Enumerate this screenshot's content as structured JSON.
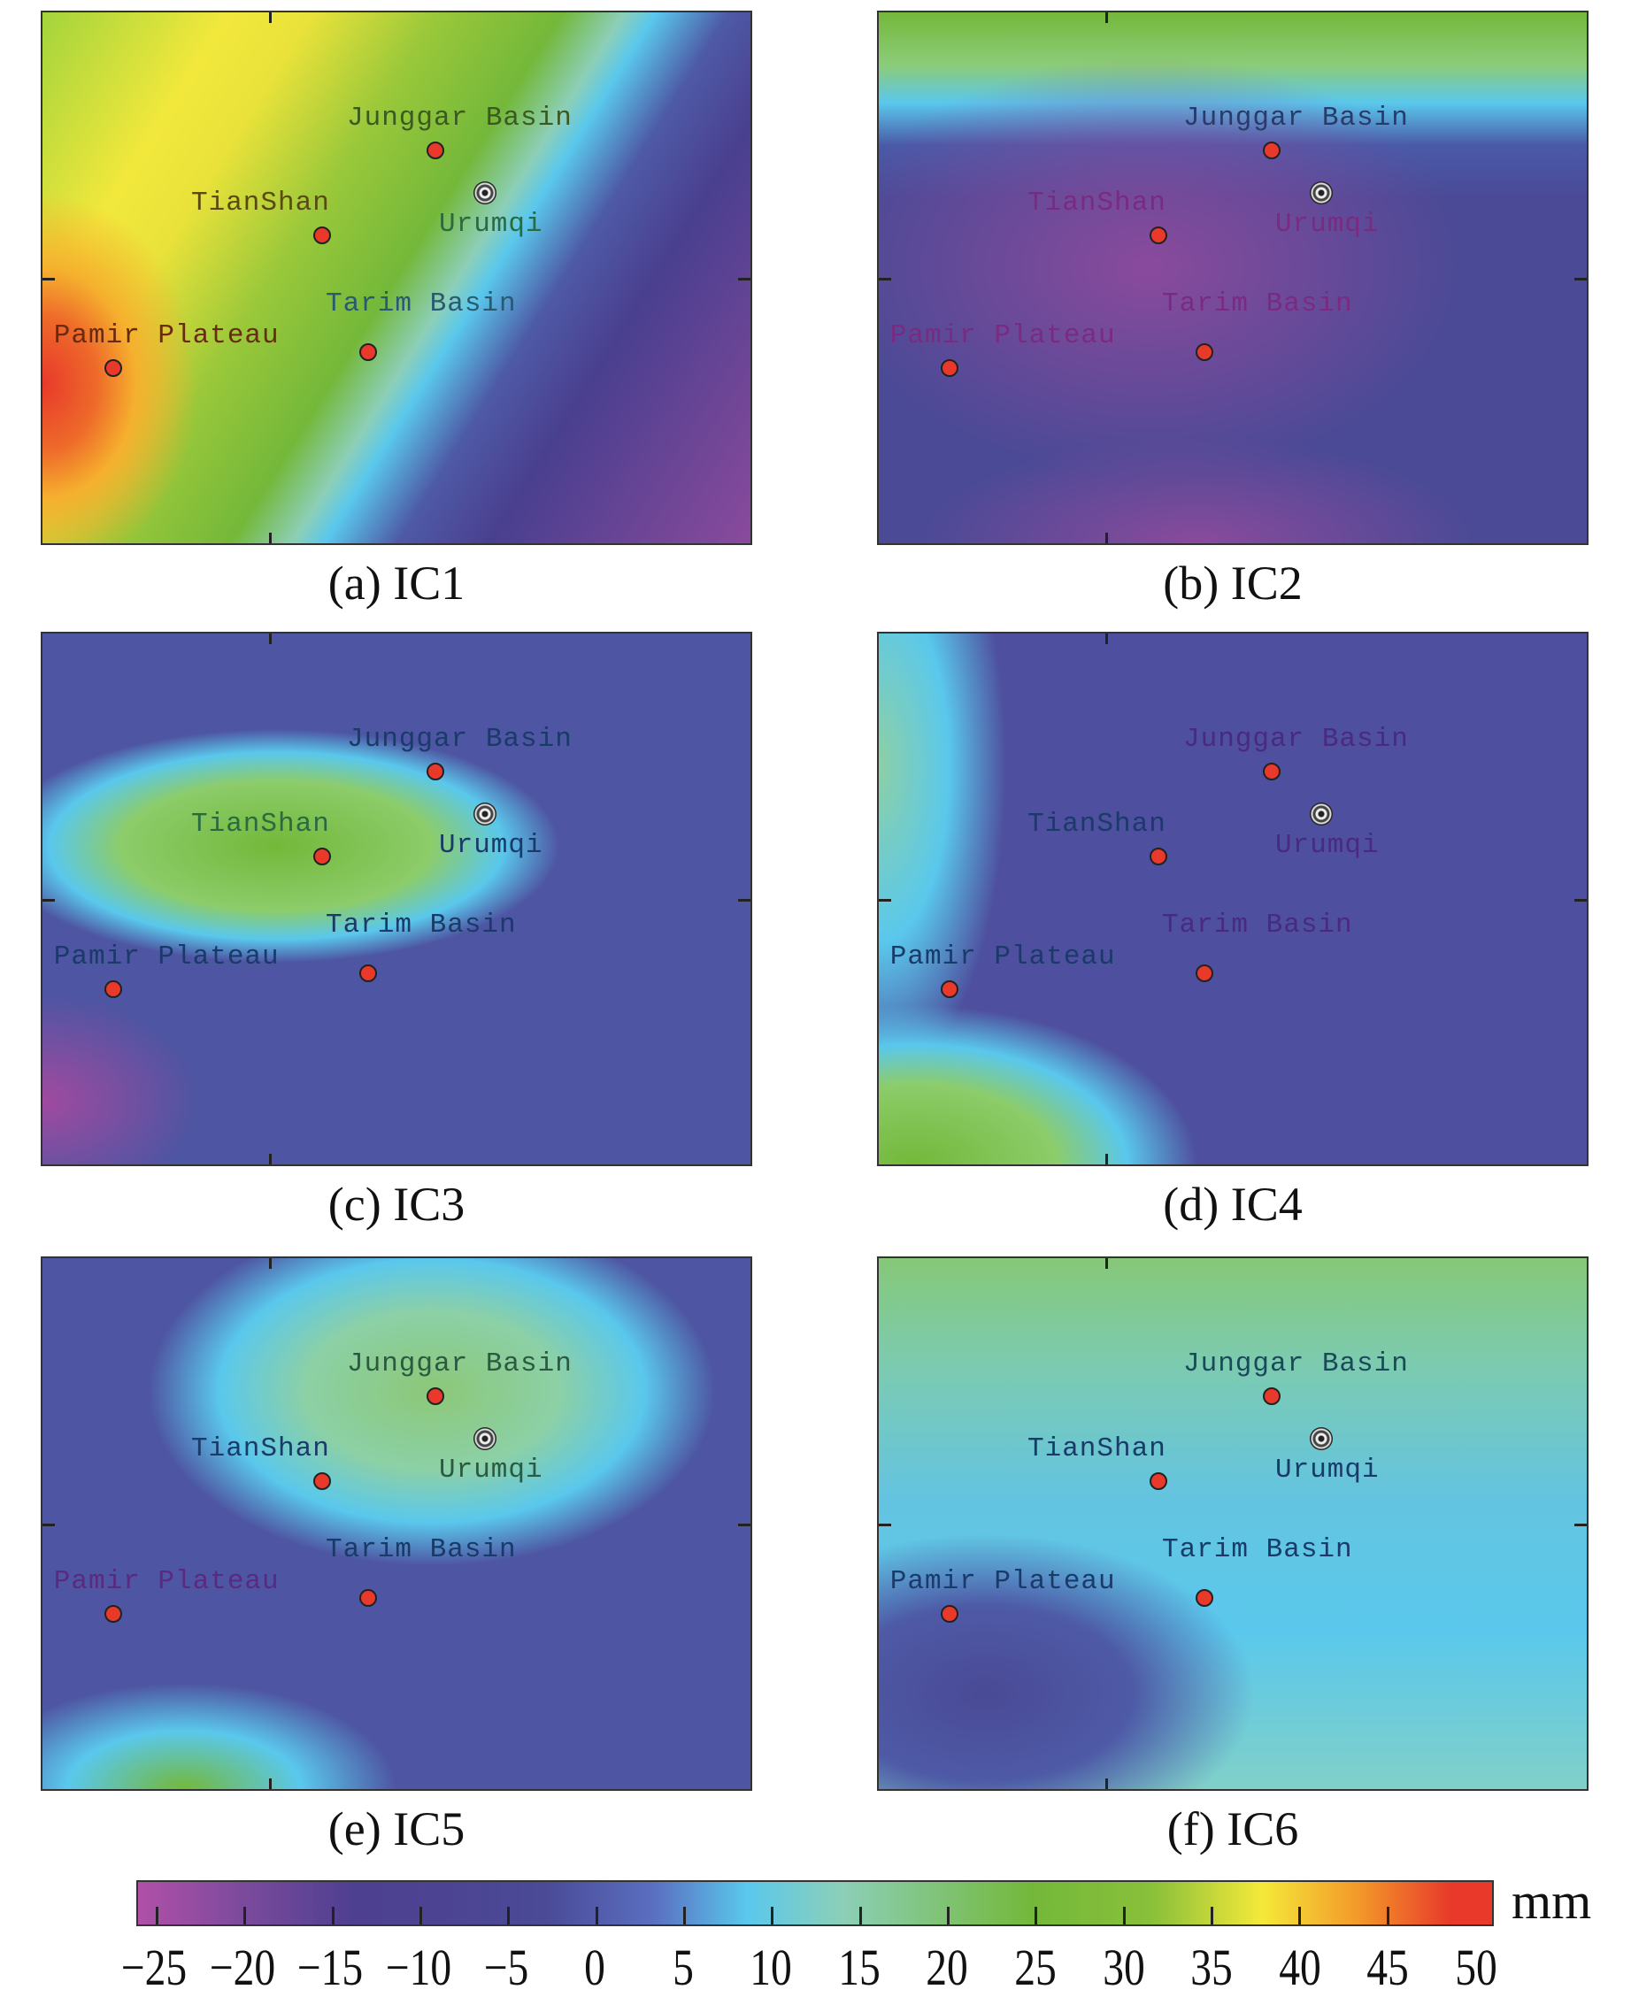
{
  "panels": [
    {
      "caption": "(a) IC1",
      "labels": {
        "junggar": "Junggar Basin",
        "tianshan": "TianShan",
        "urumqi": "Urumqi",
        "tarim": "Tarim Basin",
        "pamir": "Pamir Plateau"
      }
    },
    {
      "caption": "(b) IC2",
      "labels": {
        "junggar": "Junggar Basin",
        "tianshan": "TianShan",
        "urumqi": "Urumqi",
        "tarim": "Tarim Basin",
        "pamir": "Pamir Plateau"
      }
    },
    {
      "caption": "(c) IC3",
      "labels": {
        "junggar": "Junggar Basin",
        "tianshan": "TianShan",
        "urumqi": "Urumqi",
        "tarim": "Tarim Basin",
        "pamir": "Pamir Plateau"
      }
    },
    {
      "caption": "(d) IC4",
      "labels": {
        "junggar": "Junggar Basin",
        "tianshan": "TianShan",
        "urumqi": "Urumqi",
        "tarim": "Tarim Basin",
        "pamir": "Pamir Plateau"
      }
    },
    {
      "caption": "(e) IC5",
      "labels": {
        "junggar": "Junggar Basin",
        "tianshan": "TianShan",
        "urumqi": "Urumqi",
        "tarim": "Tarim Basin",
        "pamir": "Pamir Plateau"
      }
    },
    {
      "caption": "(f) IC6",
      "labels": {
        "junggar": "Junggar Basin",
        "tianshan": "TianShan",
        "urumqi": "Urumqi",
        "tarim": "Tarim Basin",
        "pamir": "Pamir Plateau"
      }
    }
  ],
  "colorbar": {
    "unit": "mm",
    "range": [
      -25,
      50
    ],
    "ticks": [
      "−25",
      "−20",
      "−15",
      "−10",
      "−5",
      "0",
      "5",
      "10",
      "15",
      "20",
      "25",
      "30",
      "35",
      "40",
      "45",
      "50"
    ],
    "colors": [
      "#a04aa0",
      "#4a3f8f",
      "#5a6ec0",
      "#5ac8ec",
      "#74b83a",
      "#f5e93a",
      "#f39a2a",
      "#e8392a"
    ]
  }
}
